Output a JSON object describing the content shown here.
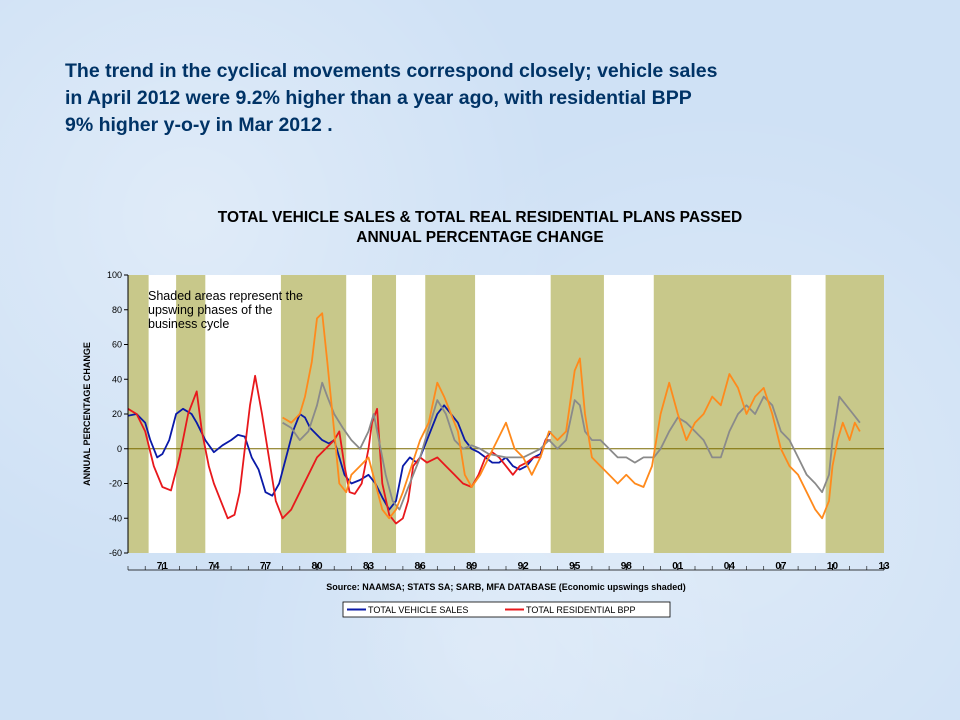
{
  "slide": {
    "headline_lines": [
      "The trend in the cyclical movements correspond closely;  vehicle sales",
      "in April 2012 were 9.2% higher than a year ago, with residential BPP",
      "9% higher y-o-y in Mar 2012 ."
    ]
  },
  "chart_data": {
    "type": "line",
    "title_lines": [
      "TOTAL VEHICLE SALES & TOTAL REAL RESIDENTIAL PLANS PASSED",
      "ANNUAL PERCENTAGE CHANGE"
    ],
    "ylabel": "ANNUAL PERCENTAGE CHANGE",
    "xlabel": "Source: NAAMSA; STATS SA;  SARB, MFA DATABASE (Economic upswings shaded)",
    "ylim": [
      -60,
      100
    ],
    "y_ticks": [
      -60,
      -40,
      -20,
      0,
      20,
      40,
      60,
      80,
      100
    ],
    "xlim": [
      1969.0,
      2013.0
    ],
    "x_tick_labels": [
      "71",
      "74",
      "77",
      "80",
      "83",
      "86",
      "89",
      "92",
      "95",
      "98",
      "01",
      "04",
      "07",
      "10",
      "13"
    ],
    "x_tick_years": [
      1971,
      1974,
      1977,
      1980,
      1983,
      1986,
      1989,
      1992,
      1995,
      1998,
      2001,
      2004,
      2007,
      2010,
      2013
    ],
    "annotation": [
      "Shaded areas represent the",
      "upswing phases of the",
      "business cycle"
    ],
    "upswing_periods": [
      [
        1969.0,
        1970.2
      ],
      [
        1971.8,
        1973.5
      ],
      [
        1977.9,
        1981.7
      ],
      [
        1983.2,
        1984.6
      ],
      [
        1986.3,
        1989.2
      ],
      [
        1993.6,
        1996.7
      ],
      [
        1999.6,
        2007.6
      ],
      [
        2009.6,
        2013.0
      ]
    ],
    "colors": {
      "vehicle_sales": "#0a1aa8",
      "residential_bpp": "#e8181c",
      "series_3": "#8a8a8a",
      "series_4": "#ff8a1c",
      "shading": "#c8c88a",
      "plot_background": "#ffffff",
      "zero_line": "#7a6a00"
    },
    "legend": [
      "TOTAL VEHICLE SALES",
      "TOTAL RESIDENTIAL BPP"
    ],
    "series": [
      {
        "name": "TOTAL VEHICLE SALES",
        "key": "vehicle_sales",
        "segment": [
          1969.0,
          1993.6
        ],
        "x": [
          1969.0,
          1969.5,
          1970.0,
          1970.3,
          1970.7,
          1971.0,
          1971.4,
          1971.8,
          1972.2,
          1972.7,
          1973.0,
          1973.5,
          1974.0,
          1974.5,
          1975.0,
          1975.4,
          1975.8,
          1976.2,
          1976.6,
          1977.0,
          1977.4,
          1977.8,
          1978.2,
          1978.6,
          1979.0,
          1979.3,
          1979.6,
          1980.0,
          1980.3,
          1980.7,
          1981.0,
          1981.3,
          1981.6,
          1982.0,
          1982.5,
          1983.0,
          1983.4,
          1983.8,
          1984.2,
          1984.6,
          1985.0,
          1985.4,
          1985.8,
          1986.0,
          1986.4,
          1987.0,
          1987.4,
          1987.8,
          1988.2,
          1988.6,
          1989.0,
          1989.4,
          1989.8,
          1990.2,
          1990.6,
          1991.0,
          1991.4,
          1991.8,
          1992.2,
          1992.6,
          1993.0,
          1993.3,
          1993.6
        ],
        "values": [
          19,
          20,
          15,
          5,
          -5,
          -3,
          5,
          20,
          23,
          20,
          15,
          5,
          -2,
          2,
          5,
          8,
          7,
          -5,
          -12,
          -25,
          -27,
          -20,
          -5,
          10,
          20,
          18,
          12,
          8,
          5,
          3,
          5,
          -5,
          -15,
          -20,
          -18,
          -15,
          -20,
          -28,
          -35,
          -30,
          -10,
          -5,
          -8,
          -5,
          5,
          20,
          25,
          20,
          15,
          5,
          0,
          -2,
          -5,
          -8,
          -8,
          -5,
          -10,
          -12,
          -10,
          -5,
          -3,
          5,
          10
        ]
      },
      {
        "name": "TOTAL RESIDENTIAL BPP",
        "key": "residential_bpp",
        "segment": [
          1969.0,
          1993.6
        ],
        "x": [
          1969.0,
          1969.5,
          1970.0,
          1970.5,
          1971.0,
          1971.5,
          1972.0,
          1972.5,
          1973.0,
          1973.3,
          1973.7,
          1974.0,
          1974.4,
          1974.8,
          1975.2,
          1975.5,
          1975.8,
          1976.1,
          1976.4,
          1976.8,
          1977.2,
          1977.6,
          1978.0,
          1978.5,
          1979.0,
          1979.5,
          1980.0,
          1980.5,
          1981.0,
          1981.3,
          1981.6,
          1981.9,
          1982.2,
          1982.6,
          1983.0,
          1983.2,
          1983.5,
          1983.8,
          1984.2,
          1984.6,
          1985.0,
          1985.3,
          1985.6,
          1986.0,
          1986.4,
          1987.0,
          1987.5,
          1988.0,
          1988.5,
          1989.0,
          1989.4,
          1989.8,
          1990.2,
          1990.6,
          1991.0,
          1991.4,
          1991.8,
          1992.2,
          1992.6,
          1993.0,
          1993.3,
          1993.6
        ],
        "values": [
          23,
          20,
          10,
          -10,
          -22,
          -24,
          -5,
          20,
          33,
          10,
          -10,
          -20,
          -30,
          -40,
          -38,
          -25,
          0,
          25,
          42,
          20,
          -5,
          -30,
          -40,
          -35,
          -25,
          -15,
          -5,
          0,
          5,
          10,
          -10,
          -25,
          -26,
          -20,
          0,
          15,
          23,
          -20,
          -38,
          -43,
          -40,
          -30,
          -10,
          -5,
          -8,
          -5,
          -10,
          -15,
          -20,
          -22,
          -15,
          -5,
          -2,
          -5,
          -10,
          -15,
          -10,
          -8,
          -5,
          -5,
          5,
          5
        ]
      },
      {
        "name": "",
        "key": "series_3",
        "segment": [
          1978.0,
          2011.6
        ],
        "x": [
          1978.0,
          1978.5,
          1979.0,
          1979.5,
          1980.0,
          1980.3,
          1980.6,
          1981.0,
          1981.5,
          1982.0,
          1982.5,
          1983.0,
          1983.3,
          1983.6,
          1984.0,
          1984.4,
          1984.8,
          1985.2,
          1985.6,
          1986.0,
          1986.3,
          1986.6,
          1987.0,
          1987.5,
          1988.0,
          1988.5,
          1989.0,
          1989.5,
          1990.0,
          1991.0,
          1992.0,
          1993.0,
          1993.5,
          1994.0,
          1994.5,
          1995.0,
          1995.3,
          1995.6,
          1996.0,
          1996.5,
          1997.0,
          1997.5,
          1998.0,
          1998.5,
          1999.0,
          1999.6,
          2000.0,
          2000.5,
          2001.0,
          2001.5,
          2002.0,
          2002.5,
          2003.0,
          2003.5,
          2004.0,
          2004.5,
          2005.0,
          2005.5,
          2006.0,
          2006.5,
          2007.0,
          2007.5,
          2008.0,
          2008.5,
          2009.0,
          2009.4,
          2009.8,
          2010.0,
          2010.4,
          2010.8,
          2011.2,
          2011.6
        ],
        "values": [
          15,
          12,
          5,
          10,
          25,
          38,
          30,
          20,
          12,
          5,
          0,
          10,
          20,
          5,
          -15,
          -30,
          -35,
          -25,
          -15,
          -5,
          5,
          15,
          28,
          20,
          5,
          0,
          2,
          0,
          -3,
          -5,
          -5,
          0,
          5,
          0,
          5,
          28,
          25,
          10,
          5,
          5,
          0,
          -5,
          -5,
          -8,
          -5,
          -5,
          0,
          10,
          18,
          15,
          10,
          5,
          -5,
          -5,
          10,
          20,
          25,
          20,
          30,
          25,
          10,
          5,
          -5,
          -15,
          -20,
          -25,
          -15,
          5,
          30,
          25,
          20,
          15
        ]
      },
      {
        "name": "",
        "key": "series_4",
        "segment": [
          1978.0,
          2011.6
        ],
        "x": [
          1978.0,
          1978.5,
          1979.0,
          1979.3,
          1979.7,
          1980.0,
          1980.3,
          1980.6,
          1981.0,
          1981.3,
          1981.7,
          1982.0,
          1982.5,
          1983.0,
          1983.4,
          1983.8,
          1984.2,
          1984.6,
          1985.0,
          1985.5,
          1986.0,
          1986.5,
          1987.0,
          1987.4,
          1987.8,
          1988.2,
          1988.6,
          1989.0,
          1989.5,
          1990.0,
          1990.5,
          1991.0,
          1991.5,
          1992.0,
          1992.5,
          1993.0,
          1993.5,
          1994.0,
          1994.5,
          1995.0,
          1995.3,
          1995.6,
          1996.0,
          1996.5,
          1997.0,
          1997.5,
          1998.0,
          1998.5,
          1999.0,
          1999.5,
          2000.0,
          2000.5,
          2001.0,
          2001.5,
          2002.0,
          2002.5,
          2003.0,
          2003.5,
          2004.0,
          2004.5,
          2005.0,
          2005.5,
          2006.0,
          2006.5,
          2007.0,
          2007.5,
          2008.0,
          2008.5,
          2009.0,
          2009.4,
          2009.8,
          2010.0,
          2010.3,
          2010.6,
          2011.0,
          2011.3,
          2011.6
        ],
        "values": [
          18,
          15,
          20,
          30,
          50,
          75,
          78,
          50,
          10,
          -20,
          -25,
          -15,
          -10,
          -5,
          -20,
          -35,
          -40,
          -35,
          -25,
          -10,
          5,
          15,
          38,
          30,
          20,
          10,
          -15,
          -22,
          -15,
          -5,
          5,
          15,
          0,
          -5,
          -15,
          -5,
          10,
          5,
          10,
          45,
          52,
          20,
          -5,
          -10,
          -15,
          -20,
          -15,
          -20,
          -22,
          -10,
          20,
          38,
          20,
          5,
          15,
          20,
          30,
          25,
          43,
          35,
          20,
          30,
          35,
          20,
          0,
          -10,
          -15,
          -25,
          -35,
          -40,
          -30,
          -10,
          5,
          15,
          5,
          15,
          10
        ]
      }
    ]
  }
}
